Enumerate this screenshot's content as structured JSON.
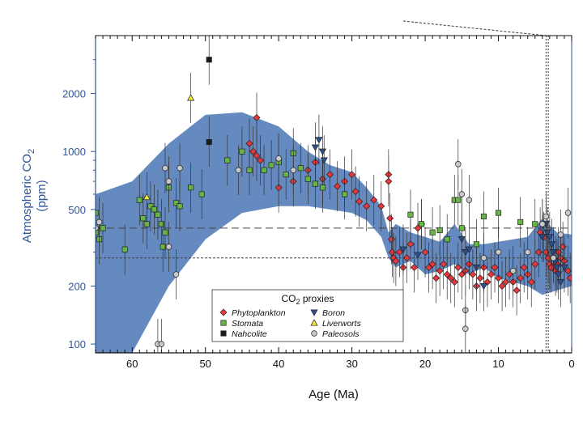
{
  "chart_data": {
    "type": "scatter",
    "xlabel": "Age (Ma)",
    "ylabel_line1": "Atmospheric CO",
    "ylabel_sub": "2",
    "ylabel_line2": "(ppm)",
    "xlim": [
      65,
      0
    ],
    "ylim": [
      90,
      4000
    ],
    "yscale": "log",
    "xticks": [
      60,
      50,
      40,
      30,
      20,
      10,
      0
    ],
    "yticks": [
      100,
      200,
      500,
      1000,
      2000
    ],
    "band": {
      "name": "CO2 envelope",
      "color": "#4a76b4",
      "x": [
        65,
        60,
        55,
        50,
        45,
        40,
        36,
        33,
        30,
        28,
        26,
        25,
        24,
        22,
        20,
        18,
        16,
        14,
        12,
        10,
        8,
        6,
        4,
        2,
        0
      ],
      "upper": [
        600,
        700,
        1100,
        1550,
        1600,
        1350,
        1000,
        850,
        780,
        650,
        520,
        380,
        420,
        380,
        360,
        340,
        420,
        330,
        330,
        340,
        350,
        360,
        450,
        380,
        370
      ],
      "lower": [
        90,
        90,
        200,
        350,
        480,
        520,
        520,
        500,
        480,
        440,
        360,
        280,
        250,
        270,
        230,
        240,
        260,
        230,
        250,
        220,
        210,
        200,
        180,
        190,
        200
      ]
    },
    "reference_lines": [
      {
        "y": 400,
        "style": "long-dash"
      },
      {
        "y": 280,
        "style": "short-dash"
      }
    ],
    "legend": {
      "title": "CO",
      "title_sub": "2",
      "title_rest": " proxies",
      "position": "bottom-center",
      "items": [
        {
          "name": "Phytoplankton",
          "marker": "diamond",
          "color": "#e8363a"
        },
        {
          "name": "Boron",
          "marker": "triangle-down",
          "color": "#2e4f8f"
        },
        {
          "name": "Stomata",
          "marker": "square",
          "color": "#68b545"
        },
        {
          "name": "Liverworts",
          "marker": "triangle-up",
          "color": "#f0e73a"
        },
        {
          "name": "Nahcolite",
          "marker": "square",
          "color": "#1a1a1a"
        },
        {
          "name": "Paleosols",
          "marker": "circle",
          "color": "#c8c8c8"
        }
      ]
    },
    "series": [
      {
        "name": "Phytoplankton",
        "marker": "diamond",
        "color": "#e8363a",
        "points": [
          [
            43,
            1500
          ],
          [
            44,
            1100
          ],
          [
            43.5,
            1000
          ],
          [
            43,
            950
          ],
          [
            42.5,
            900
          ],
          [
            40,
            650
          ],
          [
            38,
            700
          ],
          [
            36,
            800
          ],
          [
            35,
            880
          ],
          [
            34,
            720
          ],
          [
            33,
            760
          ],
          [
            32,
            660
          ],
          [
            31,
            700
          ],
          [
            30,
            760
          ],
          [
            29.5,
            620
          ],
          [
            29,
            550
          ],
          [
            28,
            520
          ],
          [
            27,
            560
          ],
          [
            26,
            520
          ],
          [
            25,
            760
          ],
          [
            25,
            700
          ],
          [
            24.8,
            450
          ],
          [
            24.6,
            350
          ],
          [
            24.5,
            300
          ],
          [
            24.3,
            280
          ],
          [
            24,
            270
          ],
          [
            23.5,
            300
          ],
          [
            23,
            250
          ],
          [
            22.5,
            280
          ],
          [
            22,
            330
          ],
          [
            21.5,
            250
          ],
          [
            21,
            400
          ],
          [
            20.5,
            420
          ],
          [
            20,
            300
          ],
          [
            19.5,
            250
          ],
          [
            19,
            260
          ],
          [
            18.5,
            220
          ],
          [
            18,
            240
          ],
          [
            17.5,
            260
          ],
          [
            17,
            230
          ],
          [
            16.5,
            220
          ],
          [
            16,
            210
          ],
          [
            15.5,
            250
          ],
          [
            15,
            230
          ],
          [
            14.5,
            240
          ],
          [
            14,
            260
          ],
          [
            13.5,
            230
          ],
          [
            13,
            200
          ],
          [
            12.5,
            220
          ],
          [
            12,
            250
          ],
          [
            11.5,
            210
          ],
          [
            11,
            230
          ],
          [
            10.5,
            250
          ],
          [
            10,
            220
          ],
          [
            9.5,
            200
          ],
          [
            9,
            210
          ],
          [
            8.5,
            230
          ],
          [
            8,
            210
          ],
          [
            7.5,
            190
          ],
          [
            7,
            220
          ],
          [
            6.5,
            250
          ],
          [
            6,
            230
          ],
          [
            5.5,
            210
          ],
          [
            5,
            260
          ],
          [
            4.5,
            300
          ],
          [
            4.3,
            380
          ],
          [
            4,
            420
          ],
          [
            3.8,
            360
          ],
          [
            3.5,
            300
          ],
          [
            3.2,
            280
          ],
          [
            3,
            260
          ],
          [
            2.8,
            250
          ],
          [
            2.5,
            280
          ],
          [
            2.2,
            240
          ],
          [
            2,
            260
          ],
          [
            1.8,
            300
          ],
          [
            1.5,
            280
          ],
          [
            1.2,
            320
          ],
          [
            1,
            270
          ],
          [
            0.5,
            240
          ],
          [
            0.2,
            220
          ]
        ]
      },
      {
        "name": "Boron",
        "marker": "triangle-down",
        "color": "#2e4f8f",
        "points": [
          [
            35,
            1050
          ],
          [
            34.5,
            1150
          ],
          [
            34,
            1000
          ],
          [
            33.8,
            900
          ],
          [
            23,
            310
          ],
          [
            21,
            290
          ],
          [
            15,
            350
          ],
          [
            14.5,
            300
          ],
          [
            14,
            310
          ],
          [
            13,
            250
          ],
          [
            12,
            200
          ],
          [
            4,
            360
          ],
          [
            3.5,
            420
          ],
          [
            3.3,
            380
          ],
          [
            3,
            360
          ],
          [
            2.7,
            330
          ],
          [
            2.5,
            300
          ],
          [
            2.2,
            270
          ],
          [
            2,
            250
          ],
          [
            1.8,
            230
          ],
          [
            1.5,
            210
          ],
          [
            1,
            250
          ]
        ]
      },
      {
        "name": "Stomata",
        "marker": "square",
        "color": "#68b545",
        "points": [
          [
            65,
            480
          ],
          [
            65,
            380
          ],
          [
            64.5,
            350
          ],
          [
            64,
            400
          ],
          [
            61,
            310
          ],
          [
            59,
            560
          ],
          [
            58.5,
            450
          ],
          [
            58,
            420
          ],
          [
            57.5,
            520
          ],
          [
            57,
            500
          ],
          [
            56.5,
            470
          ],
          [
            56,
            420
          ],
          [
            55.8,
            320
          ],
          [
            55.5,
            380
          ],
          [
            55,
            650
          ],
          [
            54,
            540
          ],
          [
            53.5,
            520
          ],
          [
            52,
            650
          ],
          [
            50.5,
            600
          ],
          [
            47,
            900
          ],
          [
            45,
            1000
          ],
          [
            44,
            800
          ],
          [
            42,
            800
          ],
          [
            41,
            850
          ],
          [
            40,
            880
          ],
          [
            39,
            760
          ],
          [
            38,
            980
          ],
          [
            37,
            820
          ],
          [
            36,
            720
          ],
          [
            35,
            680
          ],
          [
            34,
            650
          ],
          [
            31,
            600
          ],
          [
            22,
            470
          ],
          [
            20.5,
            420
          ],
          [
            19,
            380
          ],
          [
            18,
            390
          ],
          [
            17,
            350
          ],
          [
            16,
            560
          ],
          [
            15.5,
            560
          ],
          [
            15,
            400
          ],
          [
            13,
            330
          ],
          [
            12,
            460
          ],
          [
            10,
            480
          ],
          [
            7,
            430
          ],
          [
            5,
            420
          ]
        ]
      },
      {
        "name": "Liverworts",
        "marker": "triangle-up",
        "color": "#f0e73a",
        "points": [
          [
            58,
            580
          ],
          [
            52,
            1900
          ]
        ]
      },
      {
        "name": "Nahcolite",
        "marker": "square",
        "color": "#1a1a1a",
        "points": [
          [
            49.5,
            3000
          ],
          [
            49.5,
            1120
          ]
        ]
      },
      {
        "name": "Paleosols",
        "marker": "circle",
        "color": "#c8c8c8",
        "points": [
          [
            65,
            400
          ],
          [
            64.5,
            430
          ],
          [
            56.5,
            100
          ],
          [
            56,
            100
          ],
          [
            55.5,
            820
          ],
          [
            55,
            700
          ],
          [
            55,
            320
          ],
          [
            54,
            230
          ],
          [
            53.5,
            820
          ],
          [
            45.5,
            800
          ],
          [
            40,
            920
          ],
          [
            38,
            800
          ],
          [
            15.5,
            860
          ],
          [
            15,
            600
          ],
          [
            14.5,
            150
          ],
          [
            14.5,
            120
          ],
          [
            14,
            560
          ],
          [
            12,
            280
          ],
          [
            10,
            300
          ],
          [
            8,
            240
          ],
          [
            6,
            300
          ],
          [
            4,
            420
          ],
          [
            3.5,
            460
          ],
          [
            2.5,
            280
          ],
          [
            1.5,
            370
          ],
          [
            0.5,
            480
          ]
        ]
      }
    ]
  }
}
